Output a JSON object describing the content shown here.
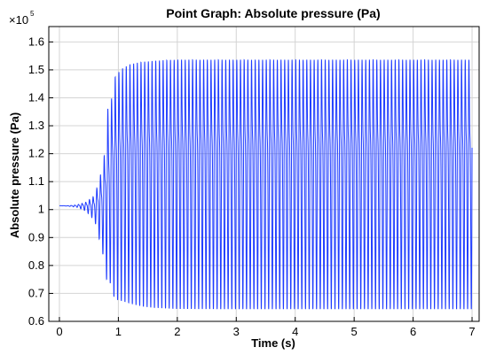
{
  "chart_data": {
    "type": "line",
    "title": "Point Graph: Absolute pressure (Pa)",
    "xlabel": "Time (s)",
    "ylabel": "Absolute pressure (Pa)",
    "y_multiplier": {
      "base": "×10",
      "exponent": "5"
    },
    "xlim": [
      -0.18,
      7.12
    ],
    "ylim": [
      0.6,
      1.655
    ],
    "xticks": [
      "0",
      "1",
      "2",
      "3",
      "4",
      "5",
      "6",
      "7"
    ],
    "yticks": [
      "0.6",
      "0.7",
      "0.8",
      "0.9",
      "1",
      "1.1",
      "1.2",
      "1.3",
      "1.4",
      "1.5",
      "1.6"
    ],
    "grid": true,
    "series": [
      {
        "color": "#1f3cff",
        "envelope": {
          "time": [
            0.0,
            0.15,
            0.3,
            0.45,
            0.6,
            0.75,
            0.82,
            0.86,
            0.9,
            0.95,
            1.05,
            1.2,
            1.4,
            1.6,
            1.8,
            2.0,
            3.0,
            4.0,
            5.0,
            6.0,
            7.0
          ],
          "upper": [
            1.014,
            1.014,
            1.018,
            1.03,
            1.06,
            1.2,
            1.43,
            1.37,
            1.53,
            1.56,
            1.59,
            1.61,
            1.62,
            1.625,
            1.628,
            1.63,
            1.63,
            1.63,
            1.63,
            1.63,
            1.63
          ],
          "lower": [
            1.014,
            1.012,
            1.008,
            0.995,
            0.96,
            0.83,
            0.72,
            0.74,
            0.7,
            0.68,
            0.675,
            0.665,
            0.655,
            0.65,
            0.648,
            0.646,
            0.645,
            0.645,
            0.645,
            0.645,
            0.645
          ]
        },
        "oscillation_period_s": 0.0625
      }
    ]
  }
}
